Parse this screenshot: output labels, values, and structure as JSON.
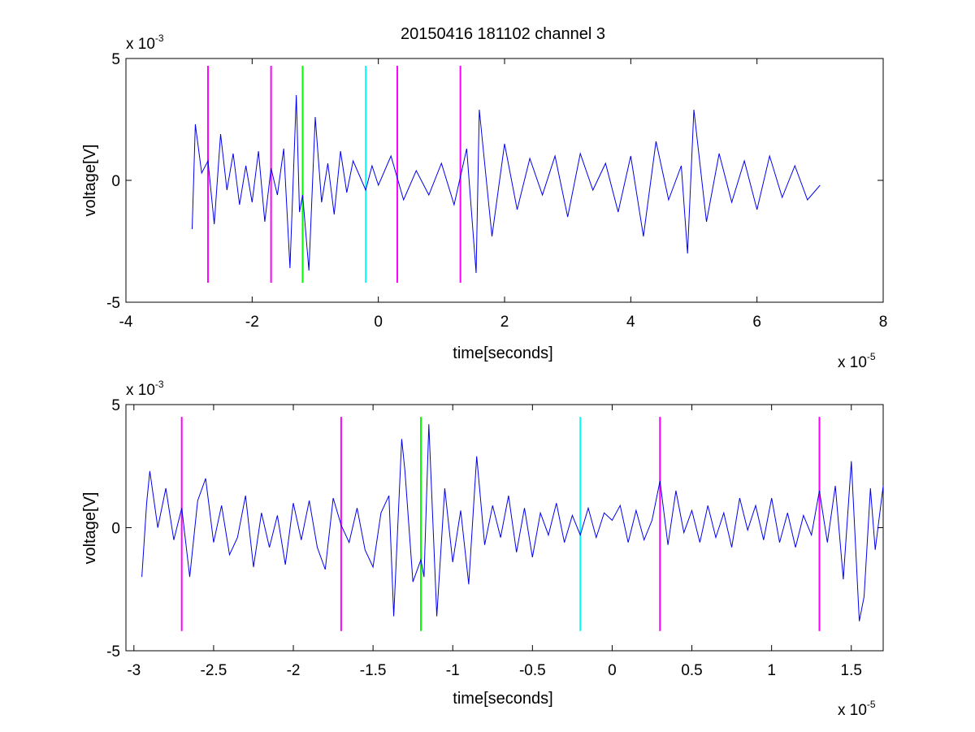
{
  "chart_data": [
    {
      "type": "line",
      "title": "20150416 181102 channel 3",
      "xlabel": "time[seconds]",
      "ylabel": "voltage[V]",
      "xlim": [
        -4,
        8
      ],
      "ylim": [
        -5,
        5
      ],
      "x_multiplier": "x 10",
      "x_multiplier_exp": "-5",
      "y_multiplier": "x 10",
      "y_multiplier_exp": "-3",
      "xticks": [
        -4,
        -2,
        0,
        2,
        4,
        6,
        8
      ],
      "xtick_labels": [
        "-4",
        "-2",
        "0",
        "2",
        "4",
        "6",
        "8"
      ],
      "yticks": [
        -5,
        0,
        5
      ],
      "ytick_labels": [
        "-5",
        "0",
        "5"
      ],
      "series": [
        {
          "color": "#0000ee",
          "x": [
            -2.95,
            -2.9,
            -2.8,
            -2.7,
            -2.6,
            -2.5,
            -2.4,
            -2.3,
            -2.2,
            -2.1,
            -2.0,
            -1.9,
            -1.8,
            -1.7,
            -1.6,
            -1.5,
            -1.4,
            -1.3,
            -1.25,
            -1.2,
            -1.1,
            -1.0,
            -0.9,
            -0.8,
            -0.7,
            -0.6,
            -0.5,
            -0.4,
            -0.3,
            -0.2,
            -0.1,
            0.0,
            0.2,
            0.4,
            0.6,
            0.8,
            1.0,
            1.2,
            1.4,
            1.55,
            1.6,
            1.8,
            2.0,
            2.2,
            2.4,
            2.6,
            2.8,
            3.0,
            3.2,
            3.4,
            3.6,
            3.8,
            4.0,
            4.2,
            4.4,
            4.6,
            4.8,
            4.9,
            5.0,
            5.2,
            5.4,
            5.6,
            5.8,
            6.0,
            6.2,
            6.4,
            6.6,
            6.8,
            7.0
          ],
          "y": [
            -2.0,
            2.3,
            0.3,
            0.8,
            -1.8,
            1.9,
            -0.4,
            1.1,
            -1.0,
            0.6,
            -0.9,
            1.2,
            -1.7,
            0.5,
            -0.6,
            1.3,
            -3.6,
            3.5,
            -1.3,
            -0.6,
            -3.7,
            2.6,
            -0.9,
            0.7,
            -1.4,
            1.2,
            -0.5,
            0.8,
            0.2,
            -0.4,
            0.6,
            -0.2,
            1.0,
            -0.8,
            0.4,
            -0.6,
            0.7,
            -1.0,
            1.3,
            -3.8,
            2.9,
            -2.3,
            1.5,
            -1.2,
            0.9,
            -0.6,
            1.0,
            -1.5,
            1.1,
            -0.4,
            0.7,
            -1.3,
            1.0,
            -2.3,
            1.6,
            -0.8,
            0.6,
            -3.0,
            2.9,
            -1.7,
            1.1,
            -0.9,
            0.8,
            -1.2,
            1.0,
            -0.7,
            0.6,
            -0.8,
            -0.2
          ]
        }
      ],
      "markers": [
        {
          "x": -2.7,
          "color": "#ff00ff"
        },
        {
          "x": -1.7,
          "color": "#ff00ff"
        },
        {
          "x": -1.2,
          "color": "#00ff00"
        },
        {
          "x": -0.2,
          "color": "#00ffff"
        },
        {
          "x": 0.3,
          "color": "#ff00ff"
        },
        {
          "x": 1.3,
          "color": "#ff00ff"
        }
      ],
      "marker_ylim": [
        -4.2,
        4.7
      ]
    },
    {
      "type": "line",
      "xlabel": "time[seconds]",
      "ylabel": "voltage[V]",
      "xlim": [
        -3.05,
        1.7
      ],
      "ylim": [
        -5,
        5
      ],
      "x_multiplier": "x 10",
      "x_multiplier_exp": "-5",
      "y_multiplier": "x 10",
      "y_multiplier_exp": "-3",
      "xticks": [
        -3,
        -2.5,
        -2,
        -1.5,
        -1,
        -0.5,
        0,
        0.5,
        1,
        1.5
      ],
      "xtick_labels": [
        "-3",
        "-2.5",
        "-2",
        "-1.5",
        "-1",
        "-0.5",
        "0",
        "0.5",
        "1",
        "1.5"
      ],
      "yticks": [
        -5,
        0,
        5
      ],
      "ytick_labels": [
        "-5",
        "0",
        "5"
      ],
      "series": [
        {
          "color": "#0000ee",
          "x": [
            -2.95,
            -2.92,
            -2.9,
            -2.85,
            -2.8,
            -2.75,
            -2.7,
            -2.65,
            -2.6,
            -2.55,
            -2.5,
            -2.45,
            -2.4,
            -2.35,
            -2.3,
            -2.25,
            -2.2,
            -2.15,
            -2.1,
            -2.05,
            -2.0,
            -1.95,
            -1.9,
            -1.85,
            -1.8,
            -1.75,
            -1.7,
            -1.65,
            -1.6,
            -1.55,
            -1.5,
            -1.45,
            -1.4,
            -1.37,
            -1.32,
            -1.3,
            -1.25,
            -1.2,
            -1.18,
            -1.15,
            -1.1,
            -1.05,
            -1.0,
            -0.95,
            -0.9,
            -0.85,
            -0.8,
            -0.75,
            -0.7,
            -0.65,
            -0.6,
            -0.55,
            -0.5,
            -0.45,
            -0.4,
            -0.35,
            -0.3,
            -0.25,
            -0.2,
            -0.15,
            -0.1,
            -0.05,
            0.0,
            0.05,
            0.1,
            0.15,
            0.2,
            0.25,
            0.3,
            0.35,
            0.4,
            0.45,
            0.5,
            0.55,
            0.6,
            0.65,
            0.7,
            0.75,
            0.8,
            0.85,
            0.9,
            0.95,
            1.0,
            1.05,
            1.1,
            1.15,
            1.2,
            1.25,
            1.3,
            1.35,
            1.4,
            1.45,
            1.5,
            1.55,
            1.58,
            1.62,
            1.65,
            1.7
          ],
          "y": [
            -2.0,
            1.0,
            2.3,
            0.0,
            1.6,
            -0.5,
            0.8,
            -2.0,
            1.1,
            2.0,
            -0.6,
            0.9,
            -1.1,
            -0.4,
            1.3,
            -1.6,
            0.6,
            -0.8,
            0.5,
            -1.5,
            1.0,
            -0.5,
            1.1,
            -0.8,
            -1.7,
            1.2,
            0.1,
            -0.6,
            0.8,
            -0.9,
            -1.6,
            0.6,
            1.3,
            -3.6,
            3.6,
            2.3,
            -2.2,
            -1.3,
            -2.0,
            4.2,
            -3.6,
            1.6,
            -1.4,
            0.7,
            -2.3,
            2.9,
            -0.7,
            0.9,
            -0.4,
            1.3,
            -1.0,
            0.8,
            -1.2,
            0.6,
            -0.3,
            1.0,
            -0.6,
            0.5,
            -0.3,
            0.8,
            -0.4,
            0.6,
            0.3,
            0.9,
            -0.6,
            0.7,
            -0.5,
            0.3,
            1.9,
            -0.7,
            1.5,
            -0.2,
            0.7,
            -0.6,
            0.9,
            -0.4,
            0.6,
            -0.8,
            1.2,
            -0.1,
            0.9,
            -0.5,
            1.2,
            -0.6,
            0.6,
            -0.8,
            0.5,
            -0.3,
            1.5,
            -0.6,
            1.7,
            -2.1,
            2.7,
            -3.8,
            -2.8,
            1.6,
            -0.9,
            1.7
          ]
        }
      ],
      "markers": [
        {
          "x": -2.7,
          "color": "#ff00ff"
        },
        {
          "x": -1.7,
          "color": "#ff00ff"
        },
        {
          "x": -1.2,
          "color": "#00ff00"
        },
        {
          "x": -0.2,
          "color": "#00ffff"
        },
        {
          "x": 0.3,
          "color": "#ff00ff"
        },
        {
          "x": 1.3,
          "color": "#ff00ff"
        }
      ],
      "marker_ylim": [
        -4.2,
        4.5
      ]
    }
  ]
}
